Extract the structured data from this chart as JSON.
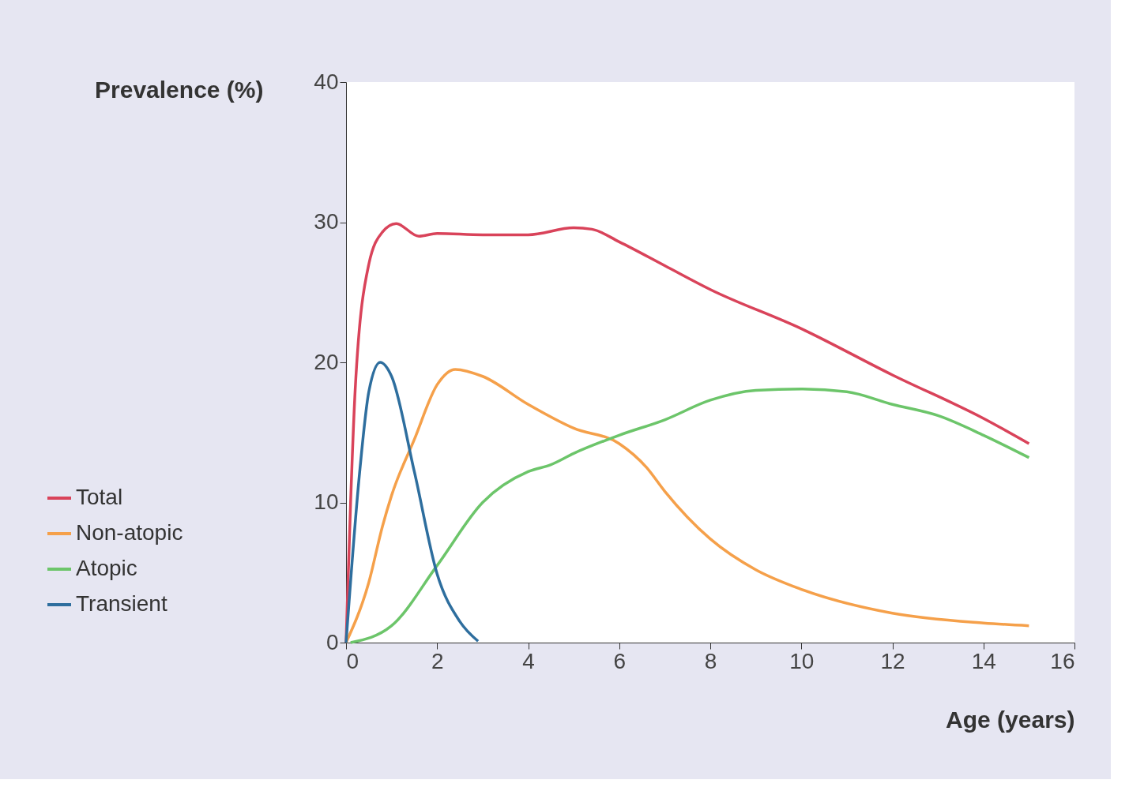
{
  "chart_data": {
    "type": "line",
    "xlabel": "Age (years)",
    "ylabel": "Prevalence (%)",
    "xlim": [
      0,
      16
    ],
    "xticks": [
      0,
      2,
      4,
      6,
      8,
      10,
      12,
      14,
      16
    ],
    "ylim": [
      0,
      40
    ],
    "yticks": [
      0,
      10,
      20,
      30,
      40
    ],
    "grid": false,
    "legend": "bottom left",
    "marker": "none",
    "line_style": "solid",
    "series": [
      {
        "name": "Total",
        "color": "#d9435a",
        "x": [
          0,
          0.1,
          0.2,
          0.5,
          0.8,
          1.1,
          1.6,
          2,
          3,
          4,
          5,
          5.4,
          6,
          7,
          8,
          10,
          12,
          14,
          15
        ],
        "values": [
          0,
          10,
          18,
          27,
          29.3,
          29.9,
          29,
          29.2,
          29.1,
          29.1,
          29.6,
          29.5,
          28.6,
          26.9,
          25.2,
          22.4,
          19.1,
          16,
          14.2
        ]
      },
      {
        "name": "Non-atopic",
        "color": "#f5a04a",
        "x": [
          0,
          0.5,
          0.8,
          1,
          1.5,
          2,
          2.4,
          3,
          4,
          5,
          6,
          6.6,
          7,
          8,
          9,
          10,
          12,
          14,
          15
        ],
        "values": [
          0,
          4.3,
          8.3,
          10.5,
          14.5,
          18.4,
          19.5,
          19,
          17,
          15.3,
          14.2,
          12.5,
          10.8,
          7.4,
          5.2,
          3.8,
          2.1,
          1.4,
          1.2
        ]
      },
      {
        "name": "Atopic",
        "color": "#6cc56a",
        "x": [
          0.1,
          1,
          2,
          3,
          4,
          4.5,
          5,
          6,
          7,
          8,
          9,
          10,
          11,
          12,
          13,
          14,
          15
        ],
        "values": [
          0,
          1.2,
          5.5,
          10,
          12.2,
          12.7,
          13.5,
          14.8,
          15.9,
          17.3,
          18,
          18.1,
          17.9,
          17,
          16.2,
          14.8,
          13.2
        ]
      },
      {
        "name": "Transient",
        "color": "#2e6e9e",
        "x": [
          0,
          0.3,
          0.5,
          0.75,
          1,
          1.5,
          2,
          2.5,
          2.9
        ],
        "values": [
          0,
          12.2,
          17.9,
          20,
          19,
          12.2,
          4.9,
          1.5,
          0.1
        ]
      }
    ]
  }
}
